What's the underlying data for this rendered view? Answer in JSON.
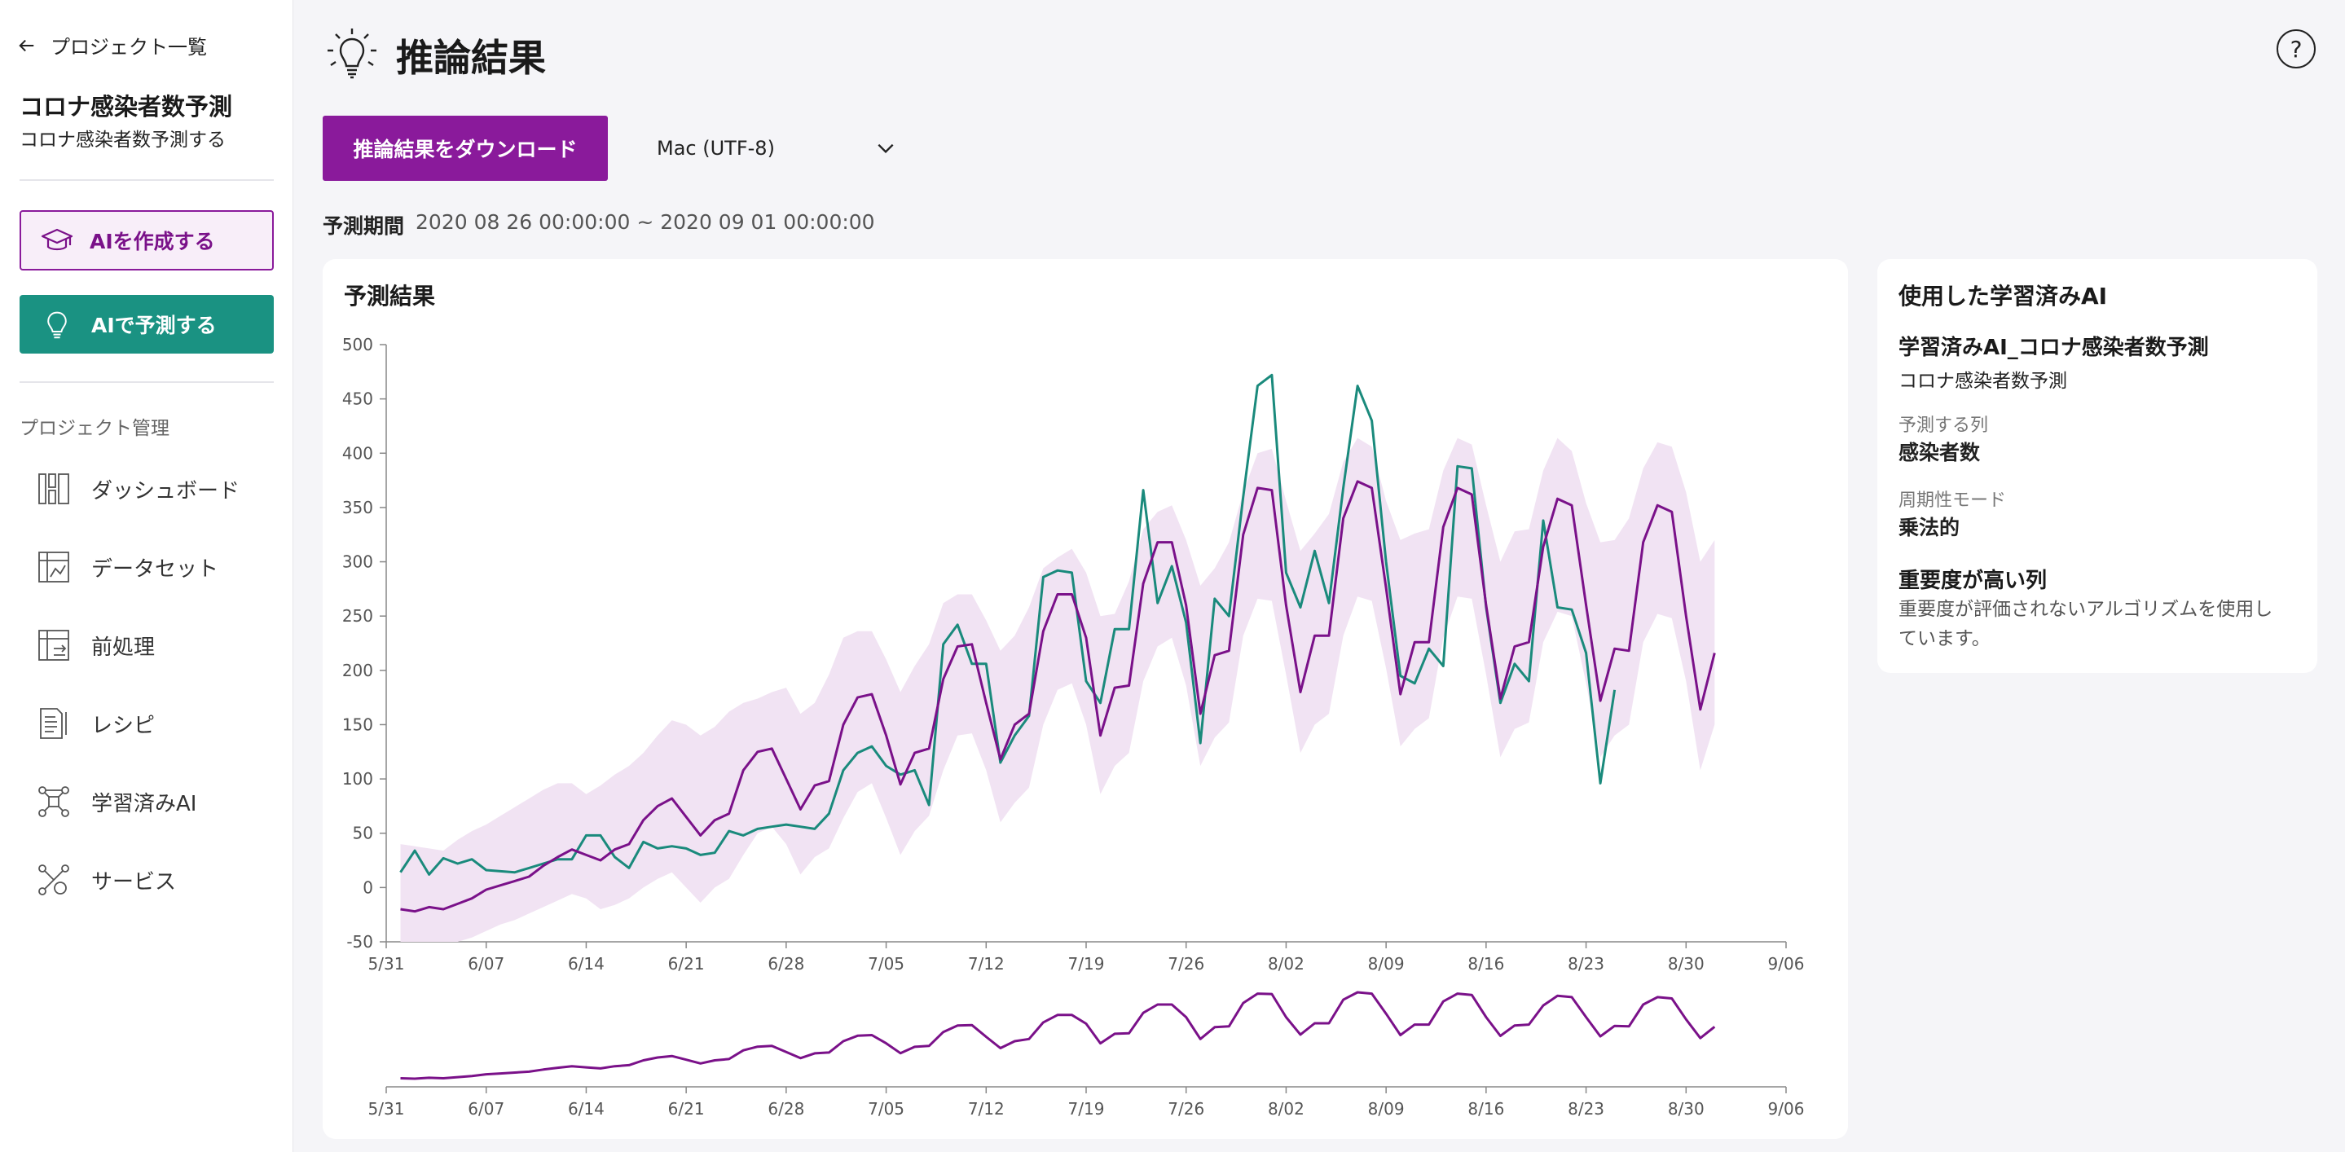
{
  "sidebar": {
    "back_label": "プロジェクト一覧",
    "project_title": "コロナ感染者数予測",
    "project_subtitle": "コロナ感染者数予測する",
    "create_ai": "AIを作成する",
    "predict_ai": "AIで予測する",
    "section": "プロジェクト管理",
    "items": [
      {
        "label": "ダッシュボード",
        "icon": "dashboard-icon"
      },
      {
        "label": "データセット",
        "icon": "dataset-icon"
      },
      {
        "label": "前処理",
        "icon": "preprocess-icon"
      },
      {
        "label": "レシピ",
        "icon": "recipe-icon"
      },
      {
        "label": "学習済みAI",
        "icon": "trained-ai-icon"
      },
      {
        "label": "サービス",
        "icon": "service-icon"
      }
    ]
  },
  "header": {
    "title": "推論結果",
    "download_label": "推論結果をダウンロード",
    "encoding": "Mac (UTF-8)",
    "help": "?"
  },
  "period": {
    "label": "予測期間",
    "value": "2020 08 26 00:00:00 ~ 2020 09 01 00:00:00"
  },
  "chart_card": {
    "title": "予測結果"
  },
  "info": {
    "title": "使用した学習済みAI",
    "ai_name": "学習済みAI_コロナ感染者数予測",
    "ai_project": "コロナ感染者数予測",
    "target_label": "予測する列",
    "target_value": "感染者数",
    "mode_label": "周期性モード",
    "mode_value": "乗法的",
    "importance_title": "重要度が高い列",
    "importance_text": "重要度が評価されないアルゴリズムを使用しています。"
  },
  "colors": {
    "prediction": "#7a1189",
    "actual": "#1a8a7c",
    "band": "#f1e3f3",
    "primary": "#8a1a9b",
    "teal": "#1a9282"
  },
  "chart_data": {
    "type": "line",
    "x_tick_labels": [
      "5/31",
      "6/07",
      "6/14",
      "6/21",
      "6/28",
      "7/05",
      "7/12",
      "7/19",
      "7/26",
      "8/02",
      "8/09",
      "8/16",
      "8/23",
      "8/30",
      "9/06"
    ],
    "ylim": [
      -50,
      500
    ],
    "y_ticks": [
      -50,
      0,
      50,
      100,
      150,
      200,
      250,
      300,
      350,
      400,
      450,
      500
    ],
    "x_start_day": 1,
    "predicted": [
      -20,
      -22,
      -18,
      -20,
      -15,
      -10,
      -2,
      2,
      6,
      10,
      20,
      28,
      35,
      30,
      25,
      35,
      40,
      62,
      75,
      82,
      65,
      48,
      62,
      68,
      108,
      125,
      128,
      100,
      72,
      94,
      98,
      150,
      175,
      178,
      140,
      95,
      124,
      128,
      192,
      222,
      224,
      170,
      118,
      150,
      160,
      236,
      270,
      270,
      230,
      140,
      184,
      186,
      280,
      318,
      318,
      260,
      160,
      214,
      218,
      325,
      368,
      366,
      260,
      180,
      232,
      232,
      340,
      374,
      368,
      276,
      178,
      226,
      226,
      332,
      368,
      362,
      260,
      174,
      222,
      226,
      314,
      358,
      352,
      260,
      172,
      220,
      218,
      318,
      352,
      346,
      250,
      164,
      216
    ],
    "actual": [
      14,
      34,
      12,
      27,
      22,
      26,
      16,
      15,
      14,
      18,
      22,
      26,
      26,
      48,
      48,
      28,
      18,
      42,
      36,
      38,
      36,
      30,
      32,
      52,
      48,
      54,
      56,
      58,
      56,
      54,
      68,
      108,
      124,
      130,
      112,
      104,
      108,
      76,
      224,
      242,
      206,
      206,
      115,
      140,
      158,
      286,
      292,
      290,
      190,
      170,
      238,
      238,
      366,
      262,
      296,
      244,
      133,
      266,
      250,
      360,
      462,
      472,
      290,
      258,
      310,
      262,
      368,
      462,
      430,
      300,
      195,
      188,
      220,
      204,
      388,
      386,
      258,
      170,
      206,
      190,
      338,
      258,
      256,
      216,
      96,
      182
    ],
    "band_upper": [
      40,
      38,
      36,
      34,
      44,
      52,
      58,
      66,
      74,
      82,
      90,
      96,
      96,
      86,
      94,
      104,
      112,
      124,
      140,
      154,
      150,
      140,
      148,
      162,
      170,
      174,
      180,
      184,
      160,
      170,
      196,
      230,
      236,
      236,
      210,
      180,
      204,
      224,
      262,
      270,
      270,
      246,
      218,
      232,
      258,
      294,
      304,
      312,
      290,
      250,
      252,
      282,
      330,
      346,
      352,
      320,
      278,
      294,
      318,
      364,
      400,
      404,
      356,
      310,
      326,
      344,
      392,
      414,
      406,
      356,
      320,
      326,
      330,
      384,
      414,
      408,
      352,
      300,
      328,
      330,
      384,
      414,
      402,
      354,
      318,
      320,
      340,
      386,
      410,
      406,
      364,
      300,
      320
    ],
    "band_lower": [
      -50,
      -50,
      -50,
      -50,
      -50,
      -46,
      -40,
      -34,
      -30,
      -24,
      -18,
      -12,
      -6,
      -10,
      -20,
      -16,
      -10,
      0,
      8,
      14,
      0,
      -14,
      0,
      8,
      30,
      50,
      56,
      40,
      12,
      28,
      36,
      64,
      88,
      96,
      64,
      30,
      52,
      66,
      108,
      140,
      142,
      108,
      60,
      78,
      92,
      150,
      182,
      188,
      150,
      86,
      112,
      124,
      190,
      222,
      230,
      186,
      112,
      138,
      152,
      232,
      266,
      264,
      196,
      124,
      150,
      160,
      232,
      268,
      264,
      202,
      130,
      146,
      156,
      230,
      268,
      266,
      196,
      120,
      146,
      152,
      226,
      254,
      250,
      188,
      120,
      140,
      150,
      226,
      252,
      248,
      190,
      108,
      150
    ]
  }
}
